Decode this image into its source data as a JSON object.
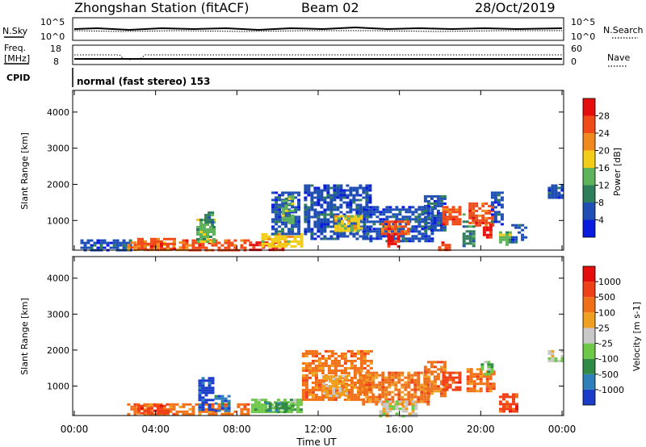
{
  "header": {
    "station": "Zhongshan Station (fitACF)",
    "beam": "Beam 02",
    "date": "28/Oct/2019"
  },
  "top_panels": {
    "nsky_label": "N.Sky",
    "nsearch_label": "N.Search",
    "nsky_ticks": [
      "10^5",
      "10^0"
    ],
    "nsearch_ticks": [
      "10^5",
      "10^0"
    ],
    "freq_label_1": "Freq.",
    "freq_label_2": "[MHz]",
    "freq_ticks": [
      "18",
      "8"
    ],
    "nave_ticks": [
      "60",
      "0"
    ],
    "nave_label": "Nave",
    "cpid_label": "CPID",
    "cpid_text": "normal (fast stereo) 153"
  },
  "chart_data": [
    {
      "type": "heatmap",
      "id": "power",
      "ylabel": "Slant Range [km]",
      "xlabel": "",
      "y_ticks": [
        1000,
        2000,
        3000,
        4000
      ],
      "ylim": [
        180,
        4600
      ],
      "xlim": [
        0,
        24
      ],
      "colorbar": {
        "label": "Power [dB]",
        "ticks": [
          "4",
          "8",
          "12",
          "16",
          "20",
          "24",
          "28"
        ],
        "colors": [
          "#0a1be0",
          "#1f4fb4",
          "#2e7d5b",
          "#5fb35a",
          "#f2cd1a",
          "#f08a1e",
          "#f04a18",
          "#e60d0d"
        ]
      },
      "cells": [
        {
          "t0": 0.3,
          "t1": 2.8,
          "r0": 200,
          "r1": 480,
          "c": 1
        },
        {
          "t0": 2.6,
          "t1": 5.6,
          "r0": 190,
          "r1": 420,
          "c": 5
        },
        {
          "t0": 3.1,
          "t1": 4.9,
          "r0": 250,
          "r1": 520,
          "c": 6
        },
        {
          "t0": 5.3,
          "t1": 8.6,
          "r0": 190,
          "r1": 480,
          "c": 6
        },
        {
          "t0": 6.0,
          "t1": 6.9,
          "r0": 400,
          "r1": 1050,
          "c": 3
        },
        {
          "t0": 6.4,
          "t1": 6.8,
          "r0": 850,
          "r1": 1250,
          "c": 2
        },
        {
          "t0": 8.6,
          "t1": 10.4,
          "r0": 190,
          "r1": 420,
          "c": 7
        },
        {
          "t0": 9.2,
          "t1": 11.2,
          "r0": 300,
          "r1": 650,
          "c": 4
        },
        {
          "t0": 9.7,
          "t1": 11.0,
          "r0": 600,
          "r1": 1800,
          "c": 1
        },
        {
          "t0": 10.2,
          "t1": 10.7,
          "r0": 900,
          "r1": 1700,
          "c": 3
        },
        {
          "t0": 11.3,
          "t1": 14.6,
          "r0": 500,
          "r1": 2000,
          "c": 1
        },
        {
          "t0": 12.8,
          "t1": 14.3,
          "r0": 700,
          "r1": 1150,
          "c": 4
        },
        {
          "t0": 14.2,
          "t1": 17.6,
          "r0": 450,
          "r1": 1400,
          "c": 1
        },
        {
          "t0": 15.1,
          "t1": 16.4,
          "r0": 600,
          "r1": 1000,
          "c": 6
        },
        {
          "t0": 15.4,
          "t1": 16.0,
          "r0": 300,
          "r1": 650,
          "c": 7
        },
        {
          "t0": 17.2,
          "t1": 18.2,
          "r0": 700,
          "r1": 1700,
          "c": 1
        },
        {
          "t0": 17.9,
          "t1": 18.4,
          "r0": 180,
          "r1": 420,
          "c": 6
        },
        {
          "t0": 18.1,
          "t1": 19.0,
          "r0": 900,
          "r1": 1400,
          "c": 6
        },
        {
          "t0": 19.1,
          "t1": 19.7,
          "r0": 300,
          "r1": 1200,
          "c": 2
        },
        {
          "t0": 19.4,
          "t1": 20.6,
          "r0": 850,
          "r1": 1500,
          "c": 6
        },
        {
          "t0": 20.1,
          "t1": 20.5,
          "r0": 500,
          "r1": 900,
          "c": 7
        },
        {
          "t0": 20.5,
          "t1": 21.1,
          "r0": 900,
          "r1": 1800,
          "c": 1
        },
        {
          "t0": 20.9,
          "t1": 21.5,
          "r0": 300,
          "r1": 700,
          "c": 3
        },
        {
          "t0": 21.5,
          "t1": 22.2,
          "r0": 400,
          "r1": 900,
          "c": 1
        },
        {
          "t0": 23.3,
          "t1": 24.0,
          "r0": 1600,
          "r1": 2000,
          "c": 1
        }
      ]
    },
    {
      "type": "heatmap",
      "id": "velocity",
      "ylabel": "Slant Range [km]",
      "xlabel": "Time UT",
      "x_ticks": [
        "00:00",
        "04:00",
        "08:00",
        "12:00",
        "16:00",
        "20:00",
        "00:00"
      ],
      "y_ticks": [
        1000,
        2000,
        3000,
        4000
      ],
      "ylim": [
        180,
        4600
      ],
      "xlim": [
        0,
        24
      ],
      "colorbar": {
        "label": "Velocity [m s-1]",
        "ticks": [
          "1000",
          "500",
          "100",
          "25",
          "-25",
          "-100",
          "-500",
          "-1000"
        ],
        "colors": [
          "#1a3cc8",
          "#2f7fb8",
          "#2f8a45",
          "#6dc848",
          "#c8c8c8",
          "#f0a020",
          "#f07018",
          "#f04018",
          "#e60d0d"
        ]
      },
      "cells": [
        {
          "t0": 2.6,
          "t1": 8.6,
          "r0": 190,
          "r1": 520,
          "c": 6
        },
        {
          "t0": 3.1,
          "t1": 4.6,
          "r0": 250,
          "r1": 480,
          "c": 7
        },
        {
          "t0": 6.1,
          "t1": 6.8,
          "r0": 350,
          "r1": 1250,
          "c": 0
        },
        {
          "t0": 6.9,
          "t1": 7.6,
          "r0": 300,
          "r1": 750,
          "c": 1
        },
        {
          "t0": 8.7,
          "t1": 11.1,
          "r0": 250,
          "r1": 650,
          "c": 3
        },
        {
          "t0": 9.4,
          "t1": 10.9,
          "r0": 300,
          "r1": 550,
          "c": 2
        },
        {
          "t0": 11.2,
          "t1": 14.6,
          "r0": 600,
          "r1": 2000,
          "c": 6
        },
        {
          "t0": 12.2,
          "t1": 13.4,
          "r0": 700,
          "r1": 1300,
          "c": 5
        },
        {
          "t0": 14.0,
          "t1": 17.4,
          "r0": 500,
          "r1": 1400,
          "c": 6
        },
        {
          "t0": 15.0,
          "t1": 16.8,
          "r0": 180,
          "r1": 600,
          "c": 4
        },
        {
          "t0": 17.2,
          "t1": 18.2,
          "r0": 700,
          "r1": 1700,
          "c": 6
        },
        {
          "t0": 18.1,
          "t1": 19.0,
          "r0": 900,
          "r1": 1400,
          "c": 7
        },
        {
          "t0": 19.3,
          "t1": 20.6,
          "r0": 850,
          "r1": 1500,
          "c": 6
        },
        {
          "t0": 20.0,
          "t1": 20.5,
          "r0": 1300,
          "r1": 1700,
          "c": 3
        },
        {
          "t0": 20.9,
          "t1": 21.7,
          "r0": 300,
          "r1": 800,
          "c": 7
        },
        {
          "t0": 23.3,
          "t1": 24.0,
          "r0": 1700,
          "r1": 2000,
          "c": 4
        }
      ]
    }
  ]
}
